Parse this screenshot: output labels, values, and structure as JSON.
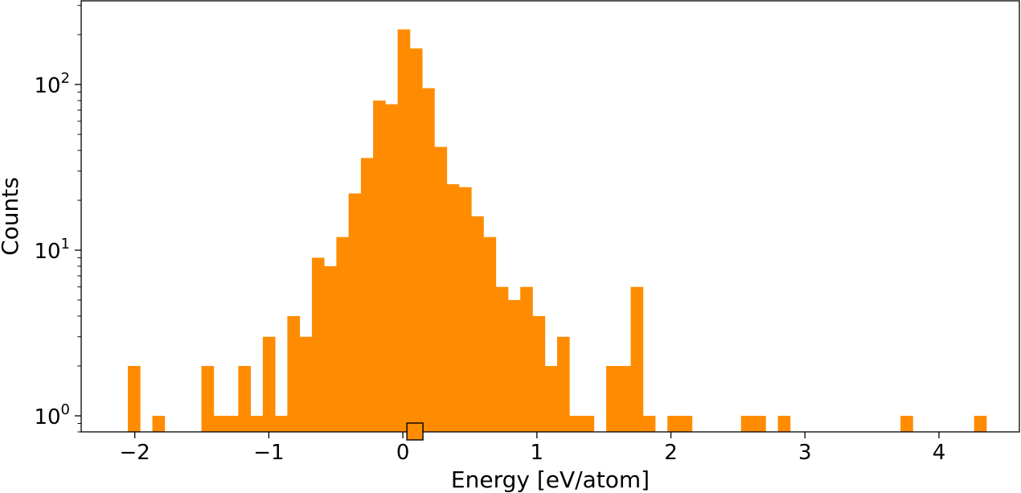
{
  "chart_data": {
    "type": "bar",
    "xlabel": "Energy [eV/atom]",
    "ylabel": "Counts",
    "yscale": "log",
    "grid": false,
    "xlim": [
      -2.4,
      4.6
    ],
    "ylim": [
      0.8,
      320
    ],
    "bar_color": "#ff8c00",
    "bin_width": 0.0915,
    "x_ticks": [
      -2,
      -1,
      0,
      1,
      2,
      3,
      4
    ],
    "x_tick_labels": [
      "−2",
      "−1",
      "0",
      "1",
      "2",
      "3",
      "4"
    ],
    "y_ticks": [
      1,
      10,
      100
    ],
    "y_tick_labels": [
      {
        "base": "10",
        "exp": "0"
      },
      {
        "base": "10",
        "exp": "1"
      },
      {
        "base": "10",
        "exp": "2"
      }
    ],
    "bin_starts": [
      -2.052,
      -1.869,
      -1.503,
      -1.411,
      -1.32,
      -1.228,
      -1.137,
      -1.045,
      -0.954,
      -0.862,
      -0.771,
      -0.679,
      -0.588,
      -0.496,
      -0.405,
      -0.313,
      -0.222,
      -0.13,
      -0.039,
      0.053,
      0.144,
      0.236,
      0.327,
      0.419,
      0.51,
      0.602,
      0.693,
      0.785,
      0.876,
      0.968,
      1.059,
      1.151,
      1.242,
      1.334,
      1.517,
      1.608,
      1.7,
      1.791,
      1.974,
      2.066,
      2.523,
      2.615,
      2.798,
      3.713,
      4.262
    ],
    "counts": [
      2,
      1,
      2,
      1,
      1,
      2,
      1,
      3,
      1,
      4,
      3,
      9,
      8,
      12,
      22,
      36,
      80,
      76,
      215,
      165,
      95,
      42,
      25,
      24,
      16,
      12,
      6,
      5,
      6,
      4,
      2,
      3,
      1,
      1,
      2,
      2,
      6,
      1,
      1,
      1,
      1,
      1,
      1,
      1,
      1
    ],
    "marker": {
      "x": 0.09,
      "y": 0.8,
      "shape": "square",
      "fill": "#ff8c00",
      "edge": "#000000"
    }
  }
}
